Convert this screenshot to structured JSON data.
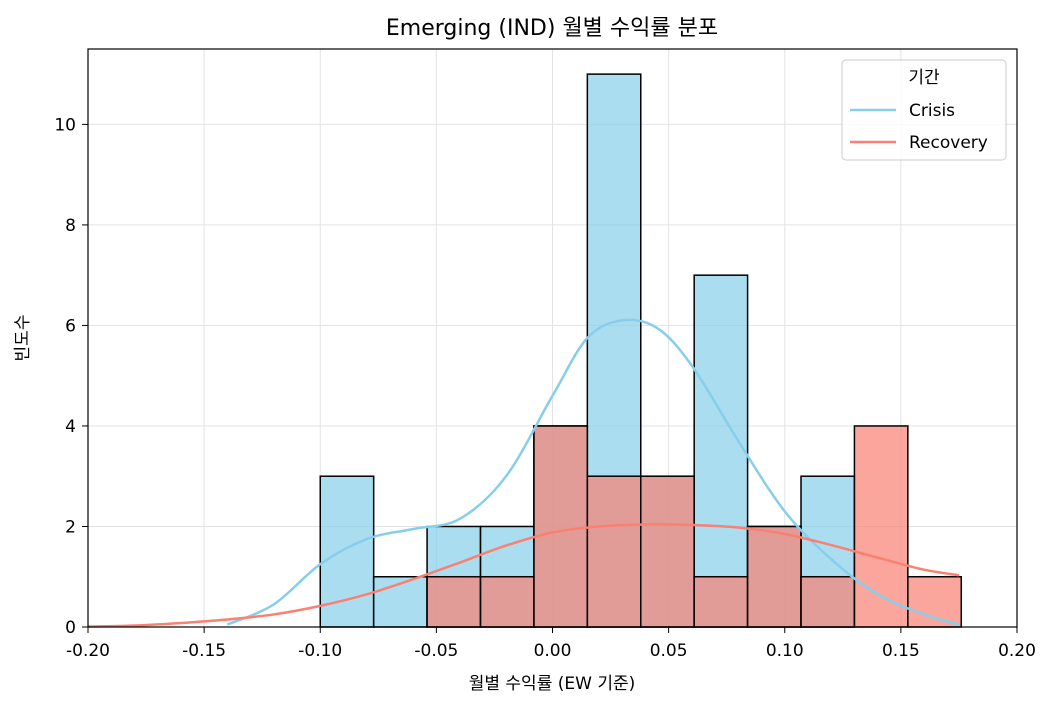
{
  "chart_data": {
    "type": "histogram",
    "title": "Emerging (IND) 월별 수익률 분포",
    "xlabel": "월별 수익률 (EW 기준)",
    "ylabel": "빈도수",
    "xlim": [
      -0.2,
      0.2
    ],
    "ylim": [
      0,
      11.5
    ],
    "xticks": [
      "-0.20",
      "-0.15",
      "-0.10",
      "-0.05",
      "0.00",
      "0.05",
      "0.10",
      "0.15",
      "0.20"
    ],
    "yticks": [
      "0",
      "2",
      "4",
      "6",
      "8",
      "10"
    ],
    "grid": true,
    "legend": {
      "title": "기간",
      "position": "top-right"
    },
    "bin_edges": [
      -0.1,
      -0.077,
      -0.054,
      -0.031,
      -0.008,
      0.015,
      0.038,
      0.061,
      0.084,
      0.107,
      0.13,
      0.153,
      0.176
    ],
    "series": [
      {
        "name": "Crisis",
        "color": "#87CEEB",
        "counts": [
          3,
          1,
          2,
          2,
          4,
          11,
          3,
          7,
          2,
          3,
          0,
          0
        ],
        "kde": [
          [
            -0.14,
            0.05
          ],
          [
            -0.12,
            0.45
          ],
          [
            -0.1,
            1.25
          ],
          [
            -0.08,
            1.75
          ],
          [
            -0.06,
            1.95
          ],
          [
            -0.04,
            2.15
          ],
          [
            -0.02,
            3.0
          ],
          [
            0.0,
            4.6
          ],
          [
            0.015,
            5.75
          ],
          [
            0.03,
            6.1
          ],
          [
            0.045,
            5.95
          ],
          [
            0.06,
            5.2
          ],
          [
            0.08,
            3.7
          ],
          [
            0.1,
            2.3
          ],
          [
            0.12,
            1.35
          ],
          [
            0.14,
            0.65
          ],
          [
            0.16,
            0.25
          ],
          [
            0.175,
            0.05
          ]
        ]
      },
      {
        "name": "Recovery",
        "color": "#FA8072",
        "counts": [
          0,
          0,
          1,
          1,
          4,
          3,
          3,
          1,
          2,
          1,
          4,
          1
        ],
        "kde": [
          [
            -0.2,
            0.01
          ],
          [
            -0.18,
            0.03
          ],
          [
            -0.16,
            0.08
          ],
          [
            -0.14,
            0.15
          ],
          [
            -0.12,
            0.25
          ],
          [
            -0.1,
            0.42
          ],
          [
            -0.08,
            0.65
          ],
          [
            -0.06,
            0.95
          ],
          [
            -0.04,
            1.28
          ],
          [
            -0.02,
            1.62
          ],
          [
            0.0,
            1.88
          ],
          [
            0.02,
            2.0
          ],
          [
            0.04,
            2.04
          ],
          [
            0.06,
            2.03
          ],
          [
            0.08,
            1.98
          ],
          [
            0.1,
            1.85
          ],
          [
            0.12,
            1.63
          ],
          [
            0.14,
            1.38
          ],
          [
            0.16,
            1.14
          ],
          [
            0.175,
            1.03
          ]
        ]
      }
    ]
  }
}
